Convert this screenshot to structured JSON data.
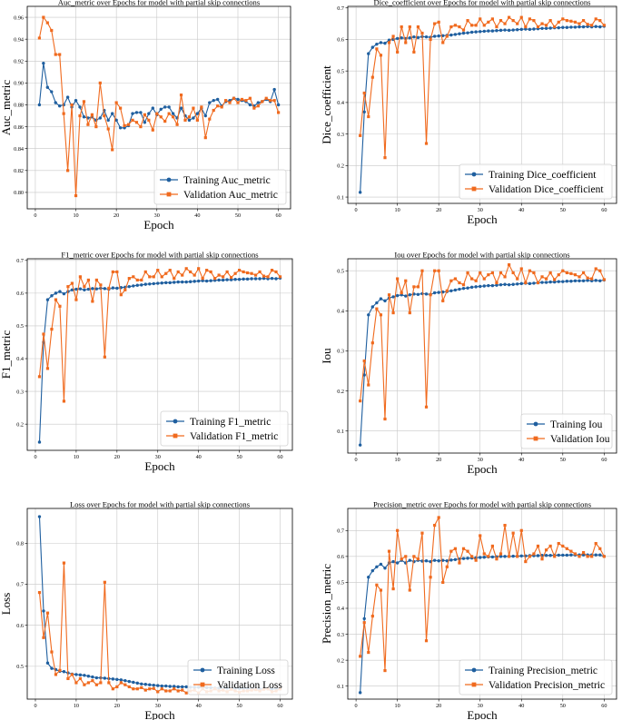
{
  "colors": {
    "training": "#1f5f9f",
    "validation": "#f06a1e",
    "grid": "#c8c8c8"
  },
  "chart_data": [
    {
      "type": "line",
      "title": "Auc_metric over Epochs for model with partial skip connections",
      "xlabel": "Epoch",
      "ylabel": "Auc_metric",
      "xlim": [
        -2,
        63
      ],
      "ylim": [
        0.785,
        0.97
      ],
      "xticks": [
        0,
        10,
        20,
        30,
        40,
        50,
        60
      ],
      "yticks": [
        0.8,
        0.82,
        0.84,
        0.86,
        0.88,
        0.9,
        0.92,
        0.94,
        0.96
      ],
      "ytick_labels": [
        "0.80",
        "0.82",
        "0.84",
        "0.86",
        "0.88",
        "0.90",
        "0.92",
        "0.94",
        "0.96"
      ],
      "legend": "lower-right",
      "grid": true,
      "series": [
        {
          "name": "Training Auc_metric",
          "marker": "circle",
          "values": [
            0.88,
            0.918,
            0.896,
            0.892,
            0.882,
            0.879,
            0.88,
            0.887,
            0.878,
            0.884,
            0.878,
            0.869,
            0.868,
            0.869,
            0.866,
            0.868,
            0.875,
            0.866,
            0.872,
            0.866,
            0.859,
            0.859,
            0.861,
            0.872,
            0.873,
            0.873,
            0.864,
            0.872,
            0.877,
            0.871,
            0.876,
            0.878,
            0.878,
            0.872,
            0.868,
            0.877,
            0.87,
            0.866,
            0.868,
            0.872,
            0.877,
            0.87,
            0.882,
            0.884,
            0.885,
            0.879,
            0.883,
            0.884,
            0.886,
            0.885,
            0.884,
            0.883,
            0.88,
            0.879,
            0.882,
            0.883,
            0.885,
            0.883,
            0.894,
            0.88
          ]
        },
        {
          "name": "Validation Auc_metric",
          "marker": "square",
          "values": [
            0.941,
            0.96,
            0.955,
            0.948,
            0.926,
            0.926,
            0.872,
            0.82,
            0.88,
            0.797,
            0.87,
            0.883,
            0.862,
            0.871,
            0.86,
            0.9,
            0.87,
            0.858,
            0.839,
            0.882,
            0.877,
            0.861,
            0.862,
            0.866,
            0.864,
            0.86,
            0.871,
            0.866,
            0.857,
            0.872,
            0.869,
            0.865,
            0.872,
            0.869,
            0.862,
            0.889,
            0.866,
            0.869,
            0.877,
            0.866,
            0.878,
            0.85,
            0.867,
            0.875,
            0.879,
            0.878,
            0.884,
            0.882,
            0.886,
            0.882,
            0.885,
            0.884,
            0.886,
            0.877,
            0.879,
            0.883,
            0.886,
            0.884,
            0.884,
            0.873
          ]
        }
      ]
    },
    {
      "type": "line",
      "title": "Dice_coefficient over Epochs for model with partial skip connections",
      "xlabel": "Epoch",
      "ylabel": "Dice_coefficient",
      "xlim": [
        -2,
        63
      ],
      "ylim": [
        0.08,
        0.705
      ],
      "xticks": [
        0,
        10,
        20,
        30,
        40,
        50,
        60
      ],
      "yticks": [
        0.1,
        0.2,
        0.3,
        0.4,
        0.5,
        0.6,
        0.7
      ],
      "ytick_labels": [
        "0.1",
        "0.2",
        "0.3",
        "0.4",
        "0.5",
        "0.6",
        "0.7"
      ],
      "legend": "lower-right",
      "grid": true,
      "series": [
        {
          "name": "Training Dice_coefficient",
          "marker": "circle",
          "values": [
            0.115,
            0.37,
            0.555,
            0.575,
            0.585,
            0.59,
            0.588,
            0.598,
            0.6,
            0.603,
            0.605,
            0.603,
            0.605,
            0.608,
            0.606,
            0.609,
            0.608,
            0.607,
            0.61,
            0.611,
            0.612,
            0.613,
            0.614,
            0.616,
            0.618,
            0.62,
            0.621,
            0.623,
            0.624,
            0.625,
            0.626,
            0.627,
            0.627,
            0.628,
            0.629,
            0.63,
            0.629,
            0.63,
            0.631,
            0.632,
            0.633,
            0.632,
            0.633,
            0.634,
            0.635,
            0.635,
            0.636,
            0.637,
            0.637,
            0.638,
            0.638,
            0.639,
            0.639,
            0.64,
            0.64,
            0.641,
            0.64,
            0.641,
            0.64,
            0.642
          ]
        },
        {
          "name": "Validation Dice_coefficient",
          "marker": "square",
          "values": [
            0.295,
            0.43,
            0.355,
            0.48,
            0.57,
            0.55,
            0.225,
            0.59,
            0.61,
            0.56,
            0.64,
            0.59,
            0.64,
            0.56,
            0.64,
            0.62,
            0.27,
            0.6,
            0.65,
            0.655,
            0.59,
            0.61,
            0.64,
            0.645,
            0.64,
            0.63,
            0.66,
            0.645,
            0.645,
            0.665,
            0.645,
            0.655,
            0.665,
            0.64,
            0.66,
            0.65,
            0.67,
            0.66,
            0.65,
            0.67,
            0.64,
            0.665,
            0.66,
            0.64,
            0.65,
            0.645,
            0.66,
            0.64,
            0.655,
            0.665,
            0.66,
            0.658,
            0.655,
            0.65,
            0.66,
            0.648,
            0.645,
            0.665,
            0.66,
            0.645
          ]
        }
      ]
    },
    {
      "type": "line",
      "title": "F1_metric over Epochs for model with partial skip connections",
      "xlabel": "Epoch",
      "ylabel": "F1_metric",
      "xlim": [
        -2,
        63
      ],
      "ylim": [
        0.12,
        0.705
      ],
      "xticks": [
        0,
        10,
        20,
        30,
        40,
        50,
        60
      ],
      "yticks": [
        0.2,
        0.3,
        0.4,
        0.5,
        0.6,
        0.7
      ],
      "ytick_labels": [
        "0.2",
        "0.3",
        "0.4",
        "0.5",
        "0.6",
        "0.7"
      ],
      "legend": "lower-right",
      "grid": true,
      "series": [
        {
          "name": "Training F1_metric",
          "marker": "circle",
          "values": [
            0.145,
            0.45,
            0.58,
            0.592,
            0.6,
            0.605,
            0.598,
            0.605,
            0.61,
            0.612,
            0.613,
            0.61,
            0.612,
            0.614,
            0.613,
            0.615,
            0.614,
            0.612,
            0.616,
            0.615,
            0.617,
            0.618,
            0.62,
            0.622,
            0.624,
            0.625,
            0.627,
            0.628,
            0.629,
            0.63,
            0.631,
            0.632,
            0.632,
            0.633,
            0.634,
            0.634,
            0.634,
            0.635,
            0.636,
            0.637,
            0.638,
            0.637,
            0.638,
            0.639,
            0.64,
            0.64,
            0.641,
            0.641,
            0.642,
            0.642,
            0.643,
            0.643,
            0.644,
            0.644,
            0.644,
            0.645,
            0.644,
            0.645,
            0.644,
            0.646
          ]
        },
        {
          "name": "Validation F1_metric",
          "marker": "square",
          "values": [
            0.345,
            0.475,
            0.37,
            0.49,
            0.58,
            0.56,
            0.27,
            0.62,
            0.63,
            0.58,
            0.65,
            0.62,
            0.64,
            0.575,
            0.64,
            0.625,
            0.405,
            0.615,
            0.665,
            0.665,
            0.595,
            0.61,
            0.645,
            0.65,
            0.64,
            0.64,
            0.665,
            0.65,
            0.65,
            0.67,
            0.65,
            0.66,
            0.67,
            0.645,
            0.665,
            0.655,
            0.675,
            0.665,
            0.655,
            0.675,
            0.645,
            0.67,
            0.665,
            0.645,
            0.655,
            0.65,
            0.665,
            0.648,
            0.66,
            0.67,
            0.665,
            0.662,
            0.66,
            0.655,
            0.665,
            0.652,
            0.65,
            0.67,
            0.665,
            0.65
          ]
        }
      ]
    },
    {
      "type": "line",
      "title": "Iou over Epochs for model with partial skip connections",
      "xlabel": "Epoch",
      "ylabel": "Iou",
      "xlim": [
        -2,
        63
      ],
      "ylim": [
        0.045,
        0.53
      ],
      "xticks": [
        0,
        10,
        20,
        30,
        40,
        50,
        60
      ],
      "yticks": [
        0.1,
        0.2,
        0.3,
        0.4,
        0.5
      ],
      "ytick_labels": [
        "0.1",
        "0.2",
        "0.3",
        "0.4",
        "0.5"
      ],
      "legend": "lower-right",
      "grid": true,
      "series": [
        {
          "name": "Training Iou",
          "marker": "circle",
          "values": [
            0.065,
            0.24,
            0.39,
            0.41,
            0.42,
            0.43,
            0.425,
            0.432,
            0.435,
            0.438,
            0.44,
            0.437,
            0.44,
            0.442,
            0.441,
            0.443,
            0.442,
            0.441,
            0.445,
            0.446,
            0.447,
            0.448,
            0.45,
            0.452,
            0.454,
            0.456,
            0.457,
            0.459,
            0.46,
            0.461,
            0.462,
            0.463,
            0.463,
            0.464,
            0.465,
            0.466,
            0.465,
            0.466,
            0.467,
            0.468,
            0.469,
            0.468,
            0.469,
            0.47,
            0.471,
            0.471,
            0.472,
            0.472,
            0.473,
            0.473,
            0.474,
            0.474,
            0.475,
            0.475,
            0.475,
            0.476,
            0.475,
            0.476,
            0.475,
            0.477
          ]
        },
        {
          "name": "Validation Iou",
          "marker": "square",
          "values": [
            0.175,
            0.275,
            0.215,
            0.32,
            0.405,
            0.39,
            0.13,
            0.44,
            0.395,
            0.48,
            0.445,
            0.475,
            0.395,
            0.46,
            0.46,
            0.5,
            0.16,
            0.44,
            0.5,
            0.5,
            0.425,
            0.45,
            0.475,
            0.48,
            0.47,
            0.465,
            0.495,
            0.48,
            0.475,
            0.495,
            0.48,
            0.49,
            0.495,
            0.47,
            0.495,
            0.485,
            0.515,
            0.495,
            0.48,
            0.505,
            0.47,
            0.5,
            0.495,
            0.47,
            0.485,
            0.48,
            0.495,
            0.478,
            0.49,
            0.5,
            0.495,
            0.493,
            0.49,
            0.485,
            0.495,
            0.482,
            0.48,
            0.505,
            0.5,
            0.478
          ]
        }
      ]
    },
    {
      "type": "line",
      "title": "Loss over Epochs for model with partial skip connections",
      "xlabel": "Epoch",
      "ylabel": "Loss",
      "xlim": [
        -2,
        63
      ],
      "ylim": [
        0.42,
        0.885
      ],
      "xticks": [
        0,
        10,
        20,
        30,
        40,
        50,
        60
      ],
      "yticks": [
        0.5,
        0.6,
        0.7,
        0.8
      ],
      "ytick_labels": [
        "0.5",
        "0.6",
        "0.7",
        "0.8"
      ],
      "legend": "lower-right",
      "grid": true,
      "series": [
        {
          "name": "Training Loss",
          "marker": "circle",
          "values": [
            0.865,
            0.635,
            0.508,
            0.495,
            0.492,
            0.488,
            0.487,
            0.484,
            0.481,
            0.48,
            0.479,
            0.478,
            0.476,
            0.474,
            0.472,
            0.472,
            0.471,
            0.47,
            0.469,
            0.468,
            0.467,
            0.465,
            0.463,
            0.461,
            0.459,
            0.457,
            0.456,
            0.455,
            0.454,
            0.453,
            0.452,
            0.452,
            0.451,
            0.451,
            0.45,
            0.45,
            0.45,
            0.449,
            0.449,
            0.449,
            0.448,
            0.448,
            0.448,
            0.447,
            0.447,
            0.447,
            0.447,
            0.446,
            0.446,
            0.446,
            0.446,
            0.446,
            0.445,
            0.445,
            0.445,
            0.445,
            0.445,
            0.445,
            0.445,
            0.445
          ]
        },
        {
          "name": "Validation Loss",
          "marker": "square",
          "values": [
            0.68,
            0.57,
            0.63,
            0.535,
            0.48,
            0.49,
            0.752,
            0.47,
            0.48,
            0.46,
            0.47,
            0.455,
            0.46,
            0.465,
            0.455,
            0.46,
            0.705,
            0.46,
            0.445,
            0.45,
            0.46,
            0.455,
            0.45,
            0.445,
            0.445,
            0.448,
            0.442,
            0.445,
            0.446,
            0.438,
            0.445,
            0.44,
            0.44,
            0.445,
            0.44,
            0.442,
            0.435,
            0.44,
            0.442,
            0.435,
            0.445,
            0.438,
            0.44,
            0.445,
            0.44,
            0.442,
            0.438,
            0.444,
            0.44,
            0.437,
            0.44,
            0.44,
            0.442,
            0.443,
            0.44,
            0.444,
            0.445,
            0.438,
            0.44,
            0.445
          ]
        }
      ]
    },
    {
      "type": "line",
      "title": "Precision_metric over Epochs for model with partial skip connections",
      "xlabel": "Epoch",
      "ylabel": "Precision_metric",
      "xlim": [
        -2,
        63
      ],
      "ylim": [
        0.05,
        0.785
      ],
      "xticks": [
        0,
        10,
        20,
        30,
        40,
        50,
        60
      ],
      "yticks": [
        0.1,
        0.2,
        0.3,
        0.4,
        0.5,
        0.6,
        0.7
      ],
      "ytick_labels": [
        "0.1",
        "0.2",
        "0.3",
        "0.4",
        "0.5",
        "0.6",
        "0.7"
      ],
      "legend": "lower-right",
      "grid": true,
      "series": [
        {
          "name": "Training Precision_metric",
          "marker": "circle",
          "values": [
            0.075,
            0.36,
            0.52,
            0.545,
            0.56,
            0.57,
            0.555,
            0.575,
            0.58,
            0.575,
            0.585,
            0.575,
            0.585,
            0.58,
            0.585,
            0.582,
            0.583,
            0.58,
            0.585,
            0.583,
            0.585,
            0.583,
            0.586,
            0.588,
            0.59,
            0.592,
            0.593,
            0.594,
            0.595,
            0.596,
            0.597,
            0.598,
            0.598,
            0.599,
            0.6,
            0.6,
            0.6,
            0.601,
            0.601,
            0.602,
            0.602,
            0.603,
            0.603,
            0.603,
            0.604,
            0.604,
            0.604,
            0.605,
            0.605,
            0.605,
            0.605,
            0.606,
            0.606,
            0.606,
            0.606,
            0.606,
            0.606,
            0.606,
            0.606,
            0.6
          ]
        },
        {
          "name": "Validation Precision_metric",
          "marker": "square",
          "values": [
            0.215,
            0.345,
            0.23,
            0.37,
            0.49,
            0.47,
            0.16,
            0.62,
            0.475,
            0.7,
            0.59,
            0.6,
            0.47,
            0.6,
            0.59,
            0.69,
            0.275,
            0.52,
            0.72,
            0.75,
            0.5,
            0.56,
            0.62,
            0.63,
            0.575,
            0.63,
            0.62,
            0.6,
            0.585,
            0.68,
            0.61,
            0.6,
            0.64,
            0.59,
            0.61,
            0.72,
            0.6,
            0.69,
            0.6,
            0.7,
            0.58,
            0.6,
            0.61,
            0.64,
            0.59,
            0.625,
            0.64,
            0.6,
            0.65,
            0.64,
            0.63,
            0.62,
            0.61,
            0.6,
            0.615,
            0.6,
            0.6,
            0.65,
            0.63,
            0.6
          ]
        }
      ]
    }
  ]
}
